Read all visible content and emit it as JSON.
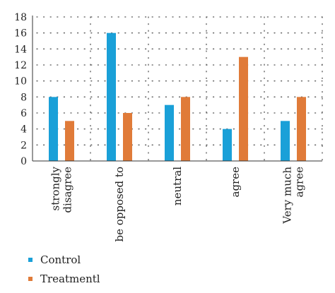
{
  "chart_data": {
    "type": "bar",
    "title": "",
    "xlabel": "",
    "ylabel": "",
    "categories": [
      [
        "strongly",
        "disagree"
      ],
      [
        "be opposed to"
      ],
      [
        "neutral"
      ],
      [
        "agree"
      ],
      [
        "Very much",
        "agree"
      ]
    ],
    "series": [
      {
        "name": "Control",
        "color": "#1aa0d8",
        "values": [
          8,
          16,
          7,
          4,
          5
        ]
      },
      {
        "name": "Treatmentl",
        "color": "#e07b39",
        "values": [
          5,
          6,
          8,
          13,
          8
        ]
      }
    ],
    "ylim": [
      0,
      18
    ],
    "yticks": [
      0,
      2,
      4,
      6,
      8,
      10,
      12,
      14,
      16,
      18
    ],
    "grid": "dotted",
    "legend_position": "bottom-left"
  }
}
